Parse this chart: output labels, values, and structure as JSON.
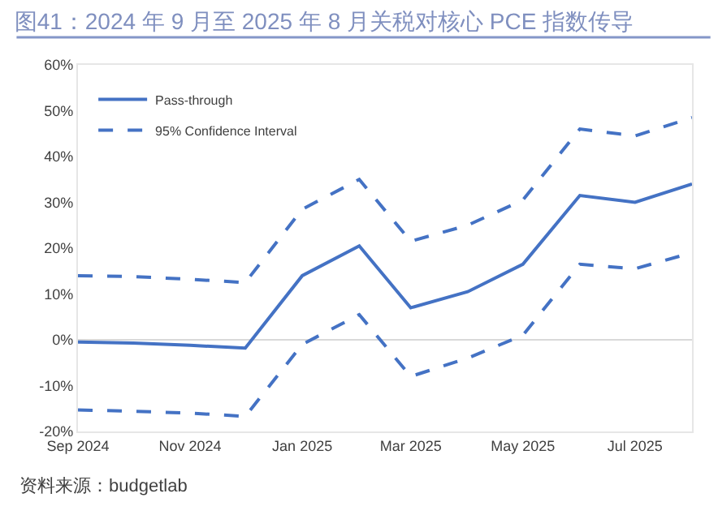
{
  "chart_data": {
    "type": "line",
    "title": "图41：2024 年 9 月至 2025 年 8 月关税对核心 PCE 指数传导",
    "annotations": [
      "资料来源：budgetlab"
    ],
    "x": [
      "2024-09",
      "2024-10",
      "2024-11",
      "2024-12",
      "2025-01",
      "2025-02",
      "2025-03",
      "2025-04",
      "2025-05",
      "2025-06",
      "2025-07",
      "2025-08"
    ],
    "series": [
      {
        "name": "Pass-through",
        "color": "#4472c4",
        "line_style": "solid",
        "values": [
          -0.5,
          -0.7,
          -1.2,
          -1.8,
          14,
          20.5,
          7,
          10.5,
          16.5,
          31.5,
          30,
          34
        ]
      },
      {
        "name": "95% Confidence Interval",
        "color": "#4472c4",
        "line_style": "dashed",
        "values": [
          14,
          13.8,
          13.2,
          12.5,
          28.5,
          35,
          21.5,
          25,
          30.5,
          46,
          44.5,
          48.5
        ]
      },
      {
        "color": "#4472c4",
        "line_style": "dashed",
        "values": [
          -15.3,
          -15.6,
          -16,
          -16.7,
          -1,
          5.5,
          -8,
          -4,
          1,
          16.5,
          15.5,
          19
        ]
      }
    ],
    "xlim": [
      "2024-09",
      "2025-08"
    ],
    "xticks": [
      {
        "value": "2024-09",
        "label": "Sep 2024"
      },
      {
        "value": "2024-11",
        "label": "Nov 2024"
      },
      {
        "value": "2025-01",
        "label": "Jan 2025"
      },
      {
        "value": "2025-03",
        "label": "Mar 2025"
      },
      {
        "value": "2025-05",
        "label": "May 2025"
      },
      {
        "value": "2025-07",
        "label": "Jul 2025"
      }
    ],
    "ylim": [
      -20,
      60
    ],
    "yticks": [
      {
        "value": -20,
        "label": "-20%"
      },
      {
        "value": -10,
        "label": "-10%"
      },
      {
        "value": 0,
        "label": "0%"
      },
      {
        "value": 10,
        "label": "10%"
      },
      {
        "value": 20,
        "label": "20%"
      },
      {
        "value": 30,
        "label": "30%"
      },
      {
        "value": 40,
        "label": "40%"
      },
      {
        "value": 50,
        "label": "50%"
      },
      {
        "value": 60,
        "label": "60%"
      }
    ],
    "ref_lines": [
      {
        "axis": "y",
        "value": 0,
        "color": "#d9d9d9"
      }
    ],
    "grid": false,
    "legend": "top left",
    "marker": "none"
  }
}
